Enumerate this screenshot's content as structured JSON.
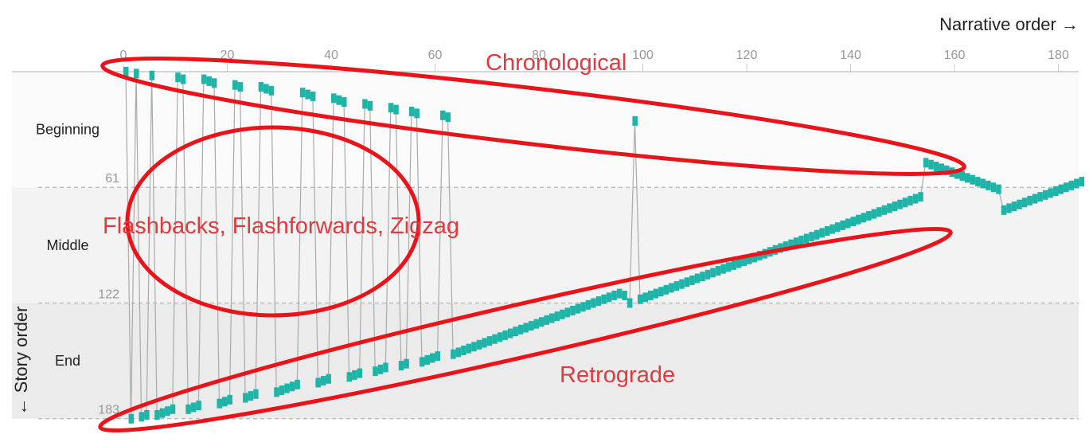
{
  "chart_data": {
    "type": "scatter",
    "x_axis": {
      "title": "Narrative order →",
      "range": [
        0,
        185
      ],
      "ticks": [
        0,
        20,
        40,
        60,
        80,
        100,
        120,
        140,
        160,
        180
      ]
    },
    "y_axis": {
      "title": "← Story order",
      "range": [
        0,
        183
      ],
      "inverted": true,
      "boundaries": [
        61,
        122,
        183
      ],
      "bands": [
        {
          "name": "Beginning",
          "from": 0,
          "to": 61,
          "color": "#fafafa"
        },
        {
          "name": "Middle",
          "from": 61,
          "to": 122,
          "color": "#f3f3f3"
        },
        {
          "name": "End",
          "from": 122,
          "to": 183,
          "color": "#ebebeb"
        }
      ]
    },
    "grid": false,
    "marker_color": "#1eb5a8",
    "connector_color": "#aaaaaa",
    "points": [
      [
        0,
        0
      ],
      [
        1,
        183
      ],
      [
        2,
        1
      ],
      [
        3,
        182
      ],
      [
        4,
        181
      ],
      [
        5,
        2
      ],
      [
        6,
        181
      ],
      [
        7,
        180
      ],
      [
        8,
        179
      ],
      [
        9,
        178
      ],
      [
        10,
        3
      ],
      [
        11,
        4
      ],
      [
        12,
        178
      ],
      [
        13,
        177
      ],
      [
        14,
        176
      ],
      [
        15,
        4
      ],
      [
        16,
        5
      ],
      [
        17,
        6
      ],
      [
        18,
        175
      ],
      [
        19,
        174
      ],
      [
        20,
        173
      ],
      [
        21,
        7
      ],
      [
        22,
        8
      ],
      [
        23,
        172
      ],
      [
        24,
        171
      ],
      [
        25,
        170
      ],
      [
        26,
        8
      ],
      [
        27,
        9
      ],
      [
        28,
        10
      ],
      [
        29,
        169
      ],
      [
        30,
        168
      ],
      [
        31,
        167
      ],
      [
        32,
        166
      ],
      [
        33,
        165
      ],
      [
        34,
        11
      ],
      [
        35,
        12
      ],
      [
        36,
        13
      ],
      [
        37,
        164
      ],
      [
        38,
        163
      ],
      [
        39,
        162
      ],
      [
        40,
        14
      ],
      [
        41,
        15
      ],
      [
        42,
        16
      ],
      [
        43,
        161
      ],
      [
        44,
        160
      ],
      [
        45,
        159
      ],
      [
        46,
        17
      ],
      [
        47,
        18
      ],
      [
        48,
        158
      ],
      [
        49,
        157
      ],
      [
        50,
        156
      ],
      [
        51,
        19
      ],
      [
        52,
        20
      ],
      [
        53,
        155
      ],
      [
        54,
        154
      ],
      [
        55,
        21
      ],
      [
        56,
        22
      ],
      [
        57,
        153
      ],
      [
        58,
        152
      ],
      [
        59,
        151
      ],
      [
        60,
        150
      ],
      [
        61,
        23
      ],
      [
        62,
        24
      ],
      [
        63,
        149
      ],
      [
        64,
        148
      ],
      [
        65,
        147
      ],
      [
        66,
        146
      ],
      [
        67,
        145
      ],
      [
        68,
        144
      ],
      [
        69,
        143
      ],
      [
        70,
        142
      ],
      [
        71,
        141
      ],
      [
        72,
        140
      ],
      [
        73,
        139
      ],
      [
        74,
        138
      ],
      [
        75,
        137
      ],
      [
        76,
        136
      ],
      [
        77,
        135
      ],
      [
        78,
        134
      ],
      [
        79,
        133
      ],
      [
        80,
        132
      ],
      [
        81,
        131
      ],
      [
        82,
        130
      ],
      [
        83,
        129
      ],
      [
        84,
        128
      ],
      [
        85,
        127
      ],
      [
        86,
        126
      ],
      [
        87,
        125
      ],
      [
        88,
        124
      ],
      [
        89,
        123
      ],
      [
        90,
        122
      ],
      [
        91,
        121
      ],
      [
        92,
        120
      ],
      [
        93,
        119
      ],
      [
        94,
        118
      ],
      [
        95,
        117
      ],
      [
        96,
        118
      ],
      [
        97,
        122
      ],
      [
        98,
        26
      ],
      [
        99,
        120
      ],
      [
        100,
        119
      ],
      [
        101,
        118
      ],
      [
        102,
        117
      ],
      [
        103,
        116
      ],
      [
        104,
        115
      ],
      [
        105,
        114
      ],
      [
        106,
        113
      ],
      [
        107,
        112
      ],
      [
        108,
        111
      ],
      [
        109,
        110
      ],
      [
        110,
        109
      ],
      [
        111,
        108
      ],
      [
        112,
        107
      ],
      [
        113,
        106
      ],
      [
        114,
        105
      ],
      [
        115,
        104
      ],
      [
        116,
        103
      ],
      [
        117,
        102
      ],
      [
        118,
        101
      ],
      [
        119,
        100
      ],
      [
        120,
        99
      ],
      [
        121,
        98
      ],
      [
        122,
        97
      ],
      [
        123,
        96
      ],
      [
        124,
        95
      ],
      [
        125,
        94
      ],
      [
        126,
        93
      ],
      [
        127,
        92
      ],
      [
        128,
        91
      ],
      [
        129,
        90
      ],
      [
        130,
        89
      ],
      [
        131,
        88
      ],
      [
        132,
        87
      ],
      [
        133,
        86
      ],
      [
        134,
        85
      ],
      [
        135,
        84
      ],
      [
        136,
        83
      ],
      [
        137,
        82
      ],
      [
        138,
        81
      ],
      [
        139,
        80
      ],
      [
        140,
        79
      ],
      [
        141,
        78
      ],
      [
        142,
        77
      ],
      [
        143,
        76
      ],
      [
        144,
        75
      ],
      [
        145,
        74
      ],
      [
        146,
        73
      ],
      [
        147,
        72
      ],
      [
        148,
        71
      ],
      [
        149,
        70
      ],
      [
        150,
        69
      ],
      [
        151,
        68
      ],
      [
        152,
        67
      ],
      [
        153,
        66
      ],
      [
        154,
        48
      ],
      [
        155,
        49
      ],
      [
        156,
        50
      ],
      [
        157,
        51
      ],
      [
        158,
        52
      ],
      [
        159,
        53
      ],
      [
        160,
        54
      ],
      [
        161,
        55
      ],
      [
        162,
        56
      ],
      [
        163,
        57
      ],
      [
        164,
        58
      ],
      [
        165,
        59
      ],
      [
        166,
        60
      ],
      [
        167,
        61
      ],
      [
        168,
        62
      ],
      [
        169,
        73
      ],
      [
        170,
        72
      ],
      [
        171,
        71
      ],
      [
        172,
        70
      ],
      [
        173,
        69
      ],
      [
        174,
        68
      ],
      [
        175,
        67
      ],
      [
        176,
        66
      ],
      [
        177,
        65
      ],
      [
        178,
        64
      ],
      [
        179,
        63
      ],
      [
        180,
        62
      ],
      [
        181,
        61
      ],
      [
        182,
        60
      ],
      [
        183,
        59
      ],
      [
        184,
        58
      ]
    ],
    "annotations": [
      {
        "text": "Chronological",
        "color": "#e0393e"
      },
      {
        "text": "Flashbacks, Flashforwards, Zigzag",
        "color": "#e0393e"
      },
      {
        "text": "Retrograde",
        "color": "#e0393e"
      }
    ]
  }
}
